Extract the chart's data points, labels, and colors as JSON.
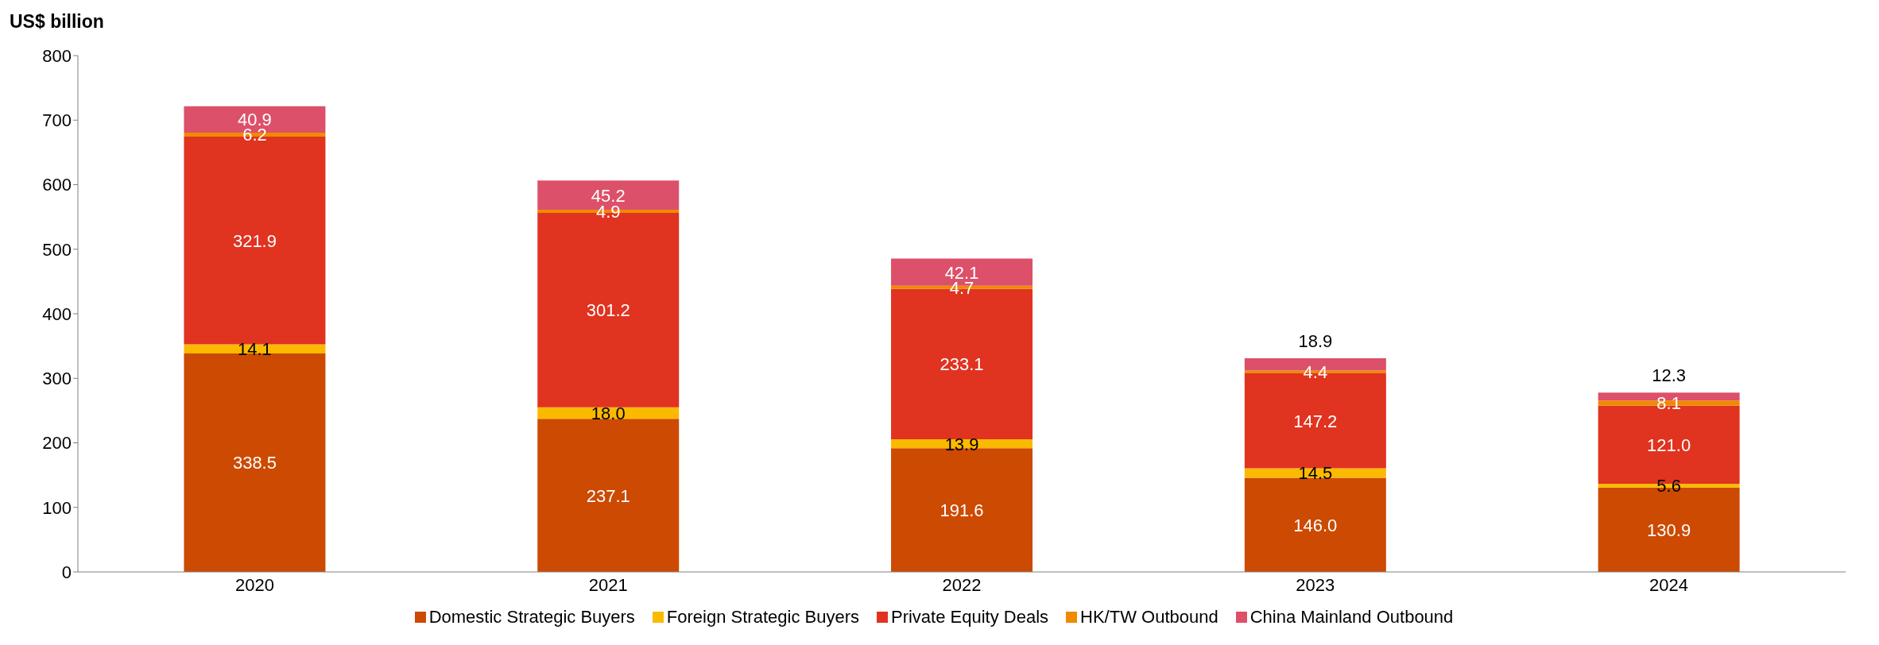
{
  "chart_data": {
    "type": "bar",
    "ylabel": "US$ billion",
    "stacked": true,
    "legend": "bottom",
    "grid": false,
    "categories": [
      "2020",
      "2021",
      "2022",
      "2023",
      "2024"
    ],
    "ylim": [
      0,
      800
    ],
    "yticks": [
      0,
      100,
      200,
      300,
      400,
      500,
      600,
      700,
      800
    ],
    "series": [
      {
        "name": "Domestic Strategic Buyers",
        "color": "#cc4a02",
        "values": [
          338.5,
          237.1,
          191.6,
          146.0,
          130.9
        ],
        "value_labels": [
          "338.5",
          "237.1",
          "191.6",
          "146.0",
          "130.9"
        ]
      },
      {
        "name": "Foreign Strategic Buyers",
        "color": "#fbb900",
        "values": [
          14.1,
          18.0,
          13.9,
          14.5,
          5.6
        ],
        "value_labels": [
          "14.1",
          "18.0",
          "13.9",
          "14.5",
          "5.6"
        ]
      },
      {
        "name": "Private Equity Deals",
        "color": "#e03320",
        "values": [
          321.9,
          301.2,
          233.1,
          147.2,
          121.0
        ],
        "value_labels": [
          "321.9",
          "301.2",
          "233.1",
          "147.2",
          "121.0"
        ]
      },
      {
        "name": "HK/TW Outbound",
        "color": "#f08a00",
        "values": [
          6.2,
          4.9,
          4.7,
          4.4,
          8.1
        ],
        "value_labels": [
          "6.2",
          "4.9",
          "4.7",
          "4.4",
          "8.1"
        ]
      },
      {
        "name": "China Mainland Outbound",
        "color": "#dc5069",
        "values": [
          40.9,
          45.2,
          42.1,
          18.9,
          12.3
        ],
        "value_labels": [
          "40.9",
          "45.2",
          "42.1",
          "18.9",
          "12.3"
        ]
      }
    ]
  }
}
